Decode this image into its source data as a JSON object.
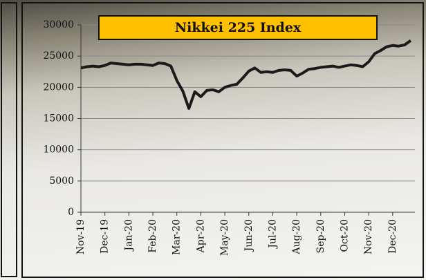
{
  "chart_data": {
    "type": "line",
    "title": "Nikkei 225 Index",
    "categories": [
      "Nov-19",
      null,
      null,
      null,
      "Dec-19",
      null,
      null,
      null,
      "Jan-20",
      null,
      null,
      null,
      "Feb-20",
      null,
      null,
      null,
      "Mar-20",
      null,
      null,
      null,
      "Apr-20",
      null,
      null,
      null,
      "May-20",
      null,
      null,
      null,
      "Jun-20",
      null,
      null,
      null,
      "Jul-20",
      null,
      null,
      null,
      "Aug-20",
      null,
      null,
      null,
      "Sep-20",
      null,
      null,
      null,
      "Oct-20",
      null,
      null,
      null,
      "Nov-20",
      null,
      null,
      null,
      "Dec-20",
      null,
      null,
      null
    ],
    "values": [
      23100,
      23300,
      23400,
      23300,
      23500,
      23900,
      23800,
      23700,
      23600,
      23700,
      23700,
      23600,
      23500,
      23900,
      23800,
      23400,
      21100,
      19400,
      16600,
      19300,
      18500,
      19500,
      19600,
      19300,
      20000,
      20300,
      20500,
      21500,
      22600,
      23100,
      22400,
      22500,
      22400,
      22700,
      22800,
      22700,
      21800,
      22300,
      22900,
      23000,
      23200,
      23300,
      23400,
      23200,
      23400,
      23600,
      23500,
      23300,
      24100,
      25400,
      25900,
      26500,
      26700,
      26600,
      26800,
      27500
    ],
    "color": "#1a1a1a",
    "ylim": [
      0,
      30000
    ],
    "yticks": [
      0,
      5000,
      10000,
      15000,
      20000,
      25000,
      30000
    ],
    "grid": true
  }
}
